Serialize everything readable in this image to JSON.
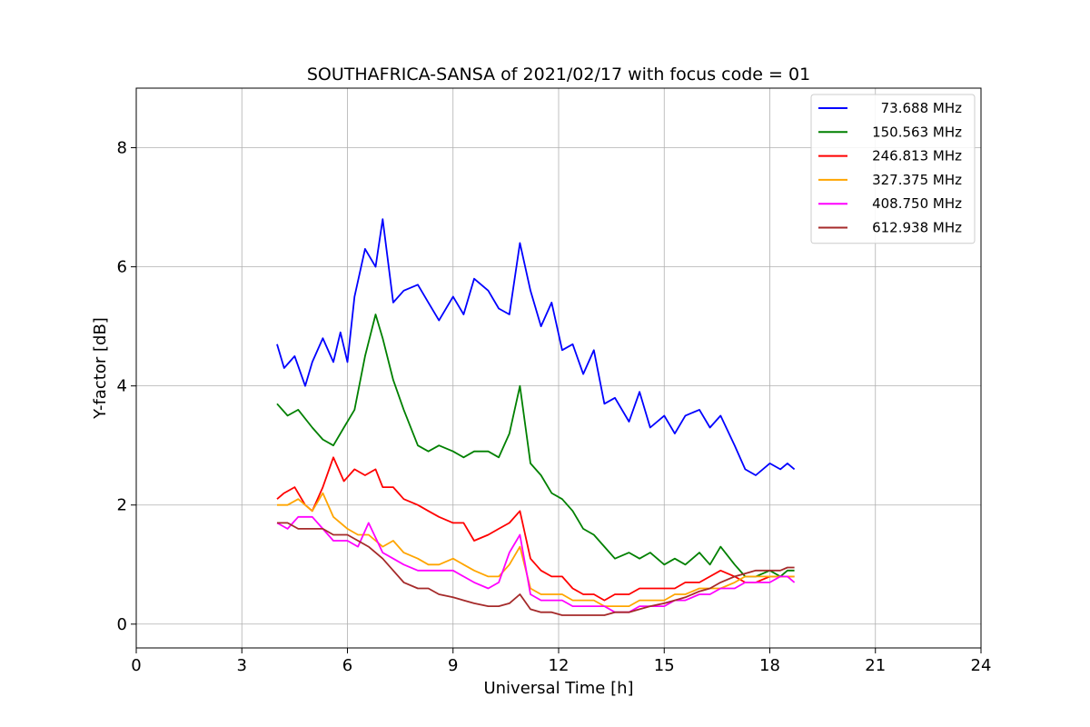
{
  "chart_data": {
    "type": "line",
    "title": "SOUTHAFRICA-SANSA of 2021/02/17 with focus code = 01",
    "xlabel": "Universal Time [h]",
    "ylabel": "Y-factor [dB]",
    "xlim": [
      0,
      24
    ],
    "ylim": [
      -0.4,
      9.0
    ],
    "xticks": [
      0,
      3,
      6,
      9,
      12,
      15,
      18,
      21,
      24
    ],
    "yticks": [
      0,
      2,
      4,
      6,
      8
    ],
    "grid": true,
    "legend_position": "top-right",
    "series": [
      {
        "name": "73.688 MHz",
        "color": "#0000ff",
        "x": [
          4.0,
          4.2,
          4.5,
          4.8,
          5.0,
          5.3,
          5.6,
          5.8,
          6.0,
          6.2,
          6.5,
          6.8,
          7.0,
          7.3,
          7.6,
          8.0,
          8.3,
          8.6,
          9.0,
          9.3,
          9.6,
          10.0,
          10.3,
          10.6,
          10.9,
          11.2,
          11.5,
          11.8,
          12.1,
          12.4,
          12.7,
          13.0,
          13.3,
          13.6,
          14.0,
          14.3,
          14.6,
          15.0,
          15.3,
          15.6,
          16.0,
          16.3,
          16.6,
          17.0,
          17.3,
          17.6,
          18.0,
          18.3,
          18.5,
          18.7
        ],
        "y": [
          4.7,
          4.3,
          4.5,
          4.0,
          4.4,
          4.8,
          4.4,
          4.9,
          4.4,
          5.5,
          6.3,
          6.0,
          6.8,
          5.4,
          5.6,
          5.7,
          5.4,
          5.1,
          5.5,
          5.2,
          5.8,
          5.6,
          5.3,
          5.2,
          6.4,
          5.6,
          5.0,
          5.4,
          4.6,
          4.7,
          4.2,
          4.6,
          3.7,
          3.8,
          3.4,
          3.9,
          3.3,
          3.5,
          3.2,
          3.5,
          3.6,
          3.3,
          3.5,
          3.0,
          2.6,
          2.5,
          2.7,
          2.6,
          2.7,
          2.6
        ]
      },
      {
        "name": "150.563 MHz",
        "color": "#008000",
        "x": [
          4.0,
          4.3,
          4.6,
          5.0,
          5.3,
          5.6,
          5.9,
          6.2,
          6.5,
          6.8,
          7.0,
          7.3,
          7.6,
          8.0,
          8.3,
          8.6,
          9.0,
          9.3,
          9.6,
          10.0,
          10.3,
          10.6,
          10.9,
          11.2,
          11.5,
          11.8,
          12.1,
          12.4,
          12.7,
          13.0,
          13.3,
          13.6,
          14.0,
          14.3,
          14.6,
          15.0,
          15.3,
          15.6,
          16.0,
          16.3,
          16.6,
          17.0,
          17.3,
          17.6,
          18.0,
          18.3,
          18.5,
          18.7
        ],
        "y": [
          3.7,
          3.5,
          3.6,
          3.3,
          3.1,
          3.0,
          3.3,
          3.6,
          4.5,
          5.2,
          4.8,
          4.1,
          3.6,
          3.0,
          2.9,
          3.0,
          2.9,
          2.8,
          2.9,
          2.9,
          2.8,
          3.2,
          4.0,
          2.7,
          2.5,
          2.2,
          2.1,
          1.9,
          1.6,
          1.5,
          1.3,
          1.1,
          1.2,
          1.1,
          1.2,
          1.0,
          1.1,
          1.0,
          1.2,
          1.0,
          1.3,
          1.0,
          0.8,
          0.8,
          0.9,
          0.8,
          0.9,
          0.9
        ]
      },
      {
        "name": "246.813 MHz",
        "color": "#ff0000",
        "x": [
          4.0,
          4.2,
          4.5,
          4.8,
          5.0,
          5.3,
          5.6,
          5.9,
          6.2,
          6.5,
          6.8,
          7.0,
          7.3,
          7.6,
          8.0,
          8.3,
          8.6,
          9.0,
          9.3,
          9.6,
          10.0,
          10.3,
          10.6,
          10.9,
          11.2,
          11.5,
          11.8,
          12.1,
          12.4,
          12.7,
          13.0,
          13.3,
          13.6,
          14.0,
          14.3,
          14.6,
          15.0,
          15.3,
          15.6,
          16.0,
          16.3,
          16.6,
          17.0,
          17.3,
          17.6,
          18.0,
          18.3,
          18.5,
          18.7
        ],
        "y": [
          2.1,
          2.2,
          2.3,
          2.0,
          1.9,
          2.3,
          2.8,
          2.4,
          2.6,
          2.5,
          2.6,
          2.3,
          2.3,
          2.1,
          2.0,
          1.9,
          1.8,
          1.7,
          1.7,
          1.4,
          1.5,
          1.6,
          1.7,
          1.9,
          1.1,
          0.9,
          0.8,
          0.8,
          0.6,
          0.5,
          0.5,
          0.4,
          0.5,
          0.5,
          0.6,
          0.6,
          0.6,
          0.6,
          0.7,
          0.7,
          0.8,
          0.9,
          0.8,
          0.7,
          0.7,
          0.8,
          0.8,
          0.8,
          0.8
        ]
      },
      {
        "name": "327.375 MHz",
        "color": "#ffa500",
        "x": [
          4.0,
          4.3,
          4.6,
          5.0,
          5.3,
          5.6,
          6.0,
          6.3,
          6.6,
          7.0,
          7.3,
          7.6,
          8.0,
          8.3,
          8.6,
          9.0,
          9.3,
          9.6,
          10.0,
          10.3,
          10.6,
          10.9,
          11.2,
          11.5,
          11.8,
          12.1,
          12.4,
          12.7,
          13.0,
          13.3,
          13.6,
          14.0,
          14.3,
          14.6,
          15.0,
          15.3,
          15.6,
          16.0,
          16.3,
          16.6,
          17.0,
          17.3,
          17.6,
          18.0,
          18.3,
          18.5,
          18.7
        ],
        "y": [
          2.0,
          2.0,
          2.1,
          1.9,
          2.2,
          1.8,
          1.6,
          1.5,
          1.5,
          1.3,
          1.4,
          1.2,
          1.1,
          1.0,
          1.0,
          1.1,
          1.0,
          0.9,
          0.8,
          0.8,
          1.0,
          1.3,
          0.6,
          0.5,
          0.5,
          0.5,
          0.4,
          0.4,
          0.4,
          0.3,
          0.3,
          0.3,
          0.4,
          0.4,
          0.4,
          0.5,
          0.5,
          0.6,
          0.6,
          0.6,
          0.7,
          0.8,
          0.8,
          0.8,
          0.8,
          0.8,
          0.8
        ]
      },
      {
        "name": "408.750 MHz",
        "color": "#ff00ff",
        "x": [
          4.0,
          4.3,
          4.6,
          5.0,
          5.3,
          5.6,
          6.0,
          6.3,
          6.6,
          7.0,
          7.3,
          7.6,
          8.0,
          8.3,
          8.6,
          9.0,
          9.3,
          9.6,
          10.0,
          10.3,
          10.6,
          10.9,
          11.2,
          11.5,
          11.8,
          12.1,
          12.4,
          12.7,
          13.0,
          13.3,
          13.6,
          14.0,
          14.3,
          14.6,
          15.0,
          15.3,
          15.6,
          16.0,
          16.3,
          16.6,
          17.0,
          17.3,
          17.6,
          18.0,
          18.3,
          18.5,
          18.7
        ],
        "y": [
          1.7,
          1.6,
          1.8,
          1.8,
          1.6,
          1.4,
          1.4,
          1.3,
          1.7,
          1.2,
          1.1,
          1.0,
          0.9,
          0.9,
          0.9,
          0.9,
          0.8,
          0.7,
          0.6,
          0.7,
          1.2,
          1.5,
          0.5,
          0.4,
          0.4,
          0.4,
          0.3,
          0.3,
          0.3,
          0.3,
          0.2,
          0.2,
          0.3,
          0.3,
          0.3,
          0.4,
          0.4,
          0.5,
          0.5,
          0.6,
          0.6,
          0.7,
          0.7,
          0.7,
          0.8,
          0.8,
          0.7
        ]
      },
      {
        "name": "612.938 MHz",
        "color": "#a52a2a",
        "x": [
          4.0,
          4.3,
          4.6,
          5.0,
          5.3,
          5.6,
          6.0,
          6.3,
          6.6,
          7.0,
          7.3,
          7.6,
          8.0,
          8.3,
          8.6,
          9.0,
          9.3,
          9.6,
          10.0,
          10.3,
          10.6,
          10.9,
          11.2,
          11.5,
          11.8,
          12.1,
          12.4,
          12.7,
          13.0,
          13.3,
          13.6,
          14.0,
          14.3,
          14.6,
          15.0,
          15.3,
          15.6,
          16.0,
          16.3,
          16.6,
          17.0,
          17.3,
          17.6,
          18.0,
          18.3,
          18.5,
          18.7
        ],
        "y": [
          1.7,
          1.7,
          1.6,
          1.6,
          1.6,
          1.5,
          1.5,
          1.4,
          1.3,
          1.1,
          0.9,
          0.7,
          0.6,
          0.6,
          0.5,
          0.45,
          0.4,
          0.35,
          0.3,
          0.3,
          0.35,
          0.5,
          0.25,
          0.2,
          0.2,
          0.15,
          0.15,
          0.15,
          0.15,
          0.15,
          0.2,
          0.2,
          0.25,
          0.3,
          0.35,
          0.4,
          0.45,
          0.55,
          0.6,
          0.7,
          0.8,
          0.85,
          0.9,
          0.9,
          0.9,
          0.95,
          0.95
        ]
      }
    ]
  }
}
